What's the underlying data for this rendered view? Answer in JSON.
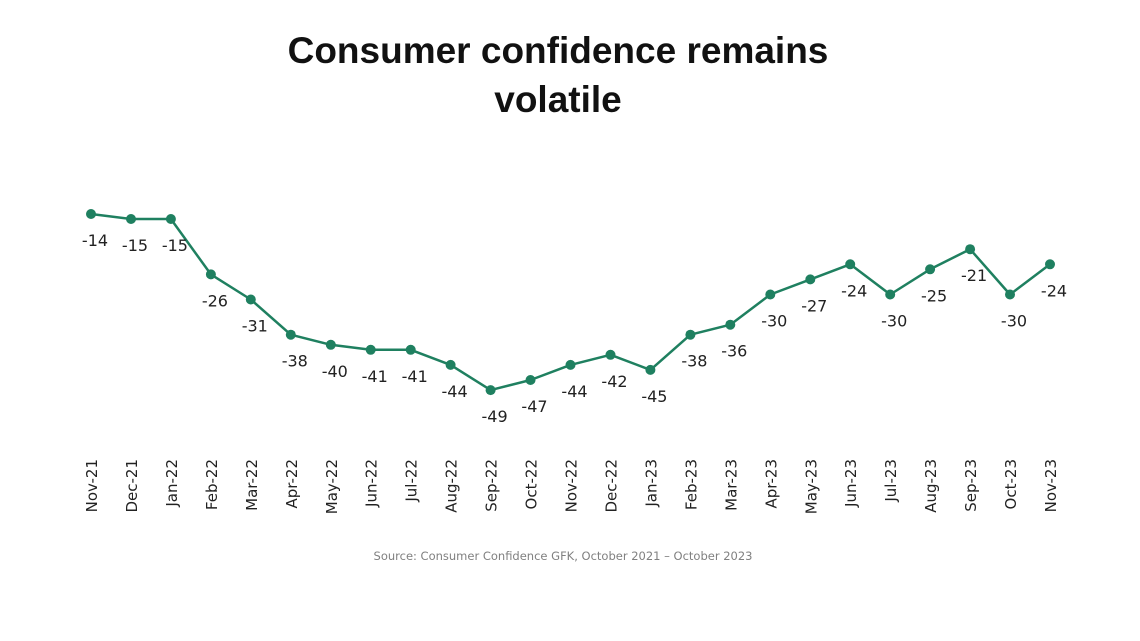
{
  "title": {
    "line1": "Consumer confidence remains",
    "line2": "volatile"
  },
  "source": "Source: Consumer Confidence GFK, October 2021 – October 2023",
  "colors": {
    "series": "#1f8060",
    "text": "#222222",
    "source": "#808080"
  },
  "chart_data": {
    "type": "line",
    "title": "Consumer confidence remains volatile",
    "xlabel": "",
    "ylabel": "",
    "grid": false,
    "legend": "none",
    "ylim": [
      -52,
      -10
    ],
    "categories": [
      "Nov-21",
      "Dec-21",
      "Jan-22",
      "Feb-22",
      "Mar-22",
      "Apr-22",
      "May-22",
      "Jun-22",
      "Jul-22",
      "Aug-22",
      "Sep-22",
      "Oct-22",
      "Nov-22",
      "Dec-22",
      "Jan-23",
      "Feb-23",
      "Mar-23",
      "Apr-23",
      "May-23",
      "Jun-23",
      "Jul-23",
      "Aug-23",
      "Sep-23",
      "Oct-23",
      "Nov-23"
    ],
    "series": [
      {
        "name": "Consumer confidence",
        "values": [
          -14,
          -15,
          -15,
          -26,
          -31,
          -38,
          -40,
          -41,
          -41,
          -44,
          -49,
          -47,
          -44,
          -42,
          -45,
          -38,
          -36,
          -30,
          -27,
          -24,
          -30,
          -25,
          -21,
          -30,
          -24
        ]
      }
    ]
  }
}
